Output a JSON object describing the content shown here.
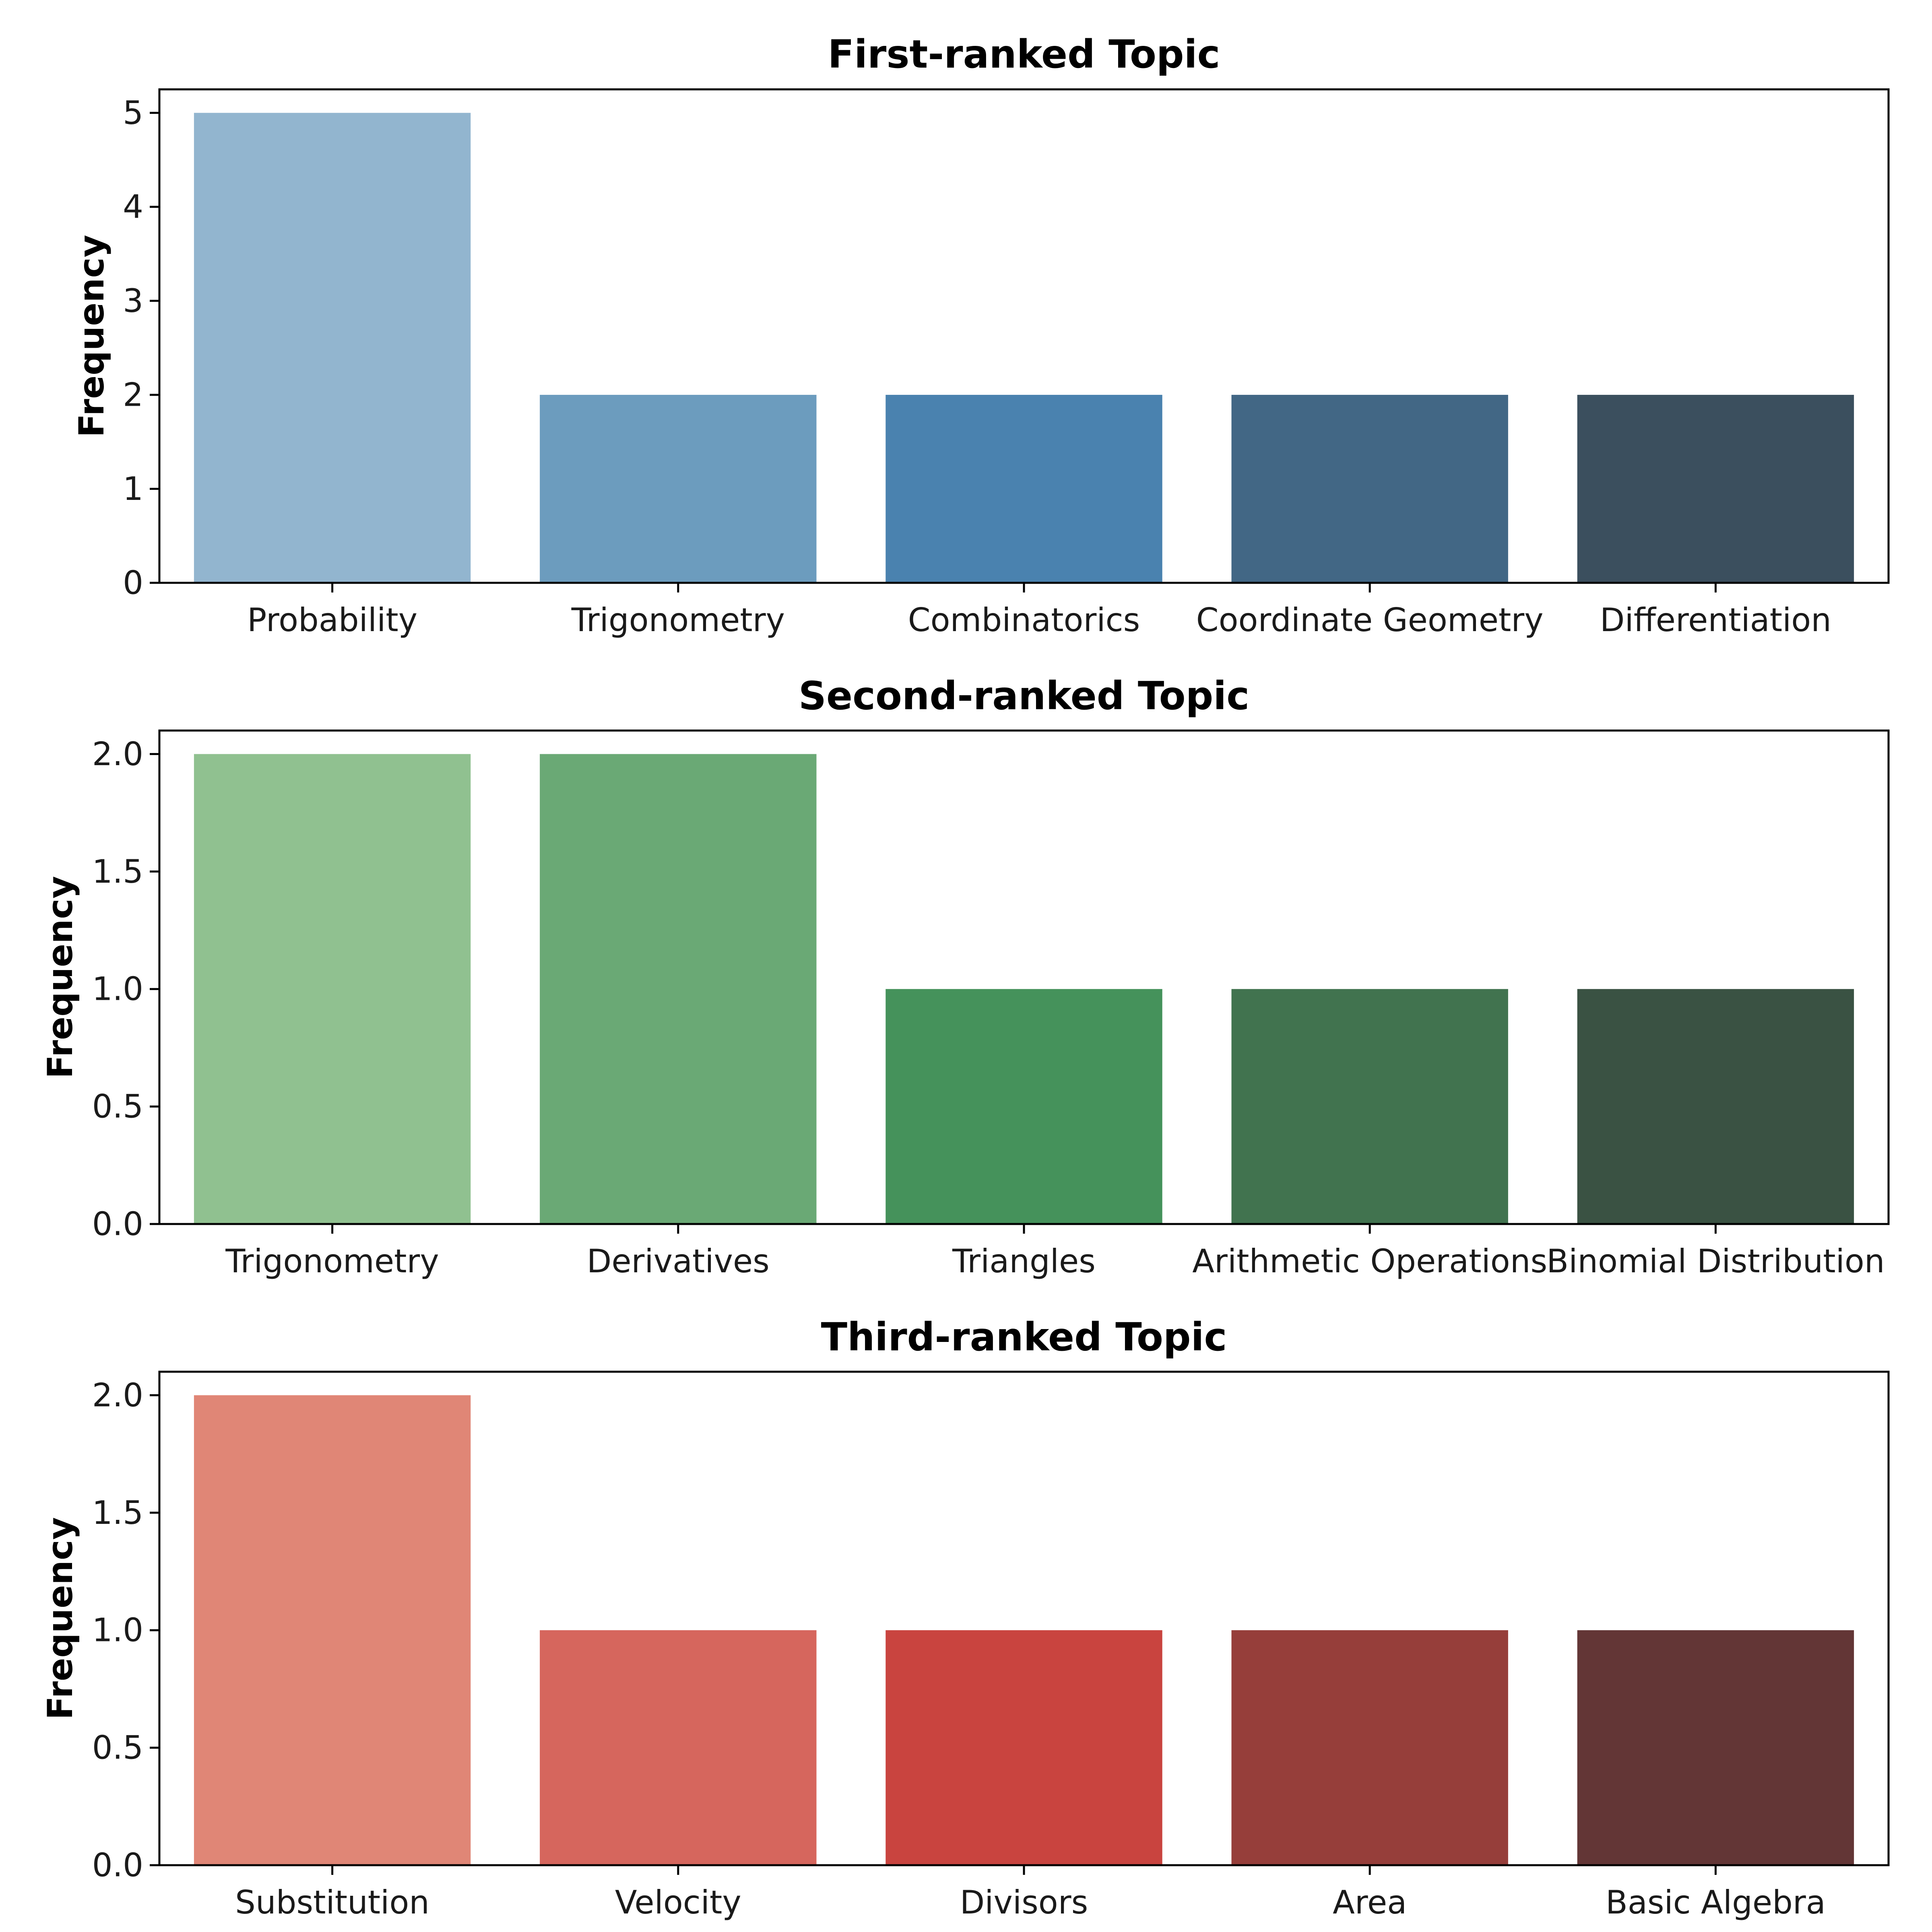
{
  "chart_data": [
    {
      "type": "bar",
      "title": "First-ranked Topic",
      "xlabel": "",
      "ylabel": "Frequency",
      "categories": [
        "Probability",
        "Trigonometry",
        "Combinatorics",
        "Coordinate Geometry",
        "Differentiation"
      ],
      "values": [
        5,
        2,
        2,
        2,
        2
      ],
      "colors": [
        "#92b5cf",
        "#6c9cbe",
        "#4a82af",
        "#426785",
        "#3b4f5e"
      ],
      "ylim": [
        0,
        5.25
      ],
      "yticks": [
        0,
        1,
        2,
        3,
        4,
        5
      ],
      "ytick_labels": [
        "0",
        "1",
        "2",
        "3",
        "4",
        "5"
      ],
      "grid": false
    },
    {
      "type": "bar",
      "title": "Second-ranked Topic",
      "xlabel": "",
      "ylabel": "Frequency",
      "categories": [
        "Trigonometry",
        "Derivatives",
        "Triangles",
        "Arithmetic Operations",
        "Binomial Distribution"
      ],
      "values": [
        2,
        2,
        1,
        1,
        1
      ],
      "colors": [
        "#90c190",
        "#6aa975",
        "#45925b",
        "#41734f",
        "#3a5243"
      ],
      "ylim": [
        0,
        2.1
      ],
      "yticks": [
        0,
        0.5,
        1.0,
        1.5,
        2.0
      ],
      "ytick_labels": [
        "0.0",
        "0.5",
        "1.0",
        "1.5",
        "2.0"
      ],
      "grid": false
    },
    {
      "type": "bar",
      "title": "Third-ranked Topic",
      "xlabel": "",
      "ylabel": "Frequency",
      "categories": [
        "Substitution",
        "Velocity",
        "Divisors",
        "Area",
        "Basic Algebra"
      ],
      "values": [
        2,
        1,
        1,
        1,
        1
      ],
      "colors": [
        "#e08676",
        "#d6665d",
        "#c9443f",
        "#963e3a",
        "#633636"
      ],
      "ylim": [
        0,
        2.1
      ],
      "yticks": [
        0,
        0.5,
        1.0,
        1.5,
        2.0
      ],
      "ytick_labels": [
        "0.0",
        "0.5",
        "1.0",
        "1.5",
        "2.0"
      ],
      "grid": false
    }
  ]
}
